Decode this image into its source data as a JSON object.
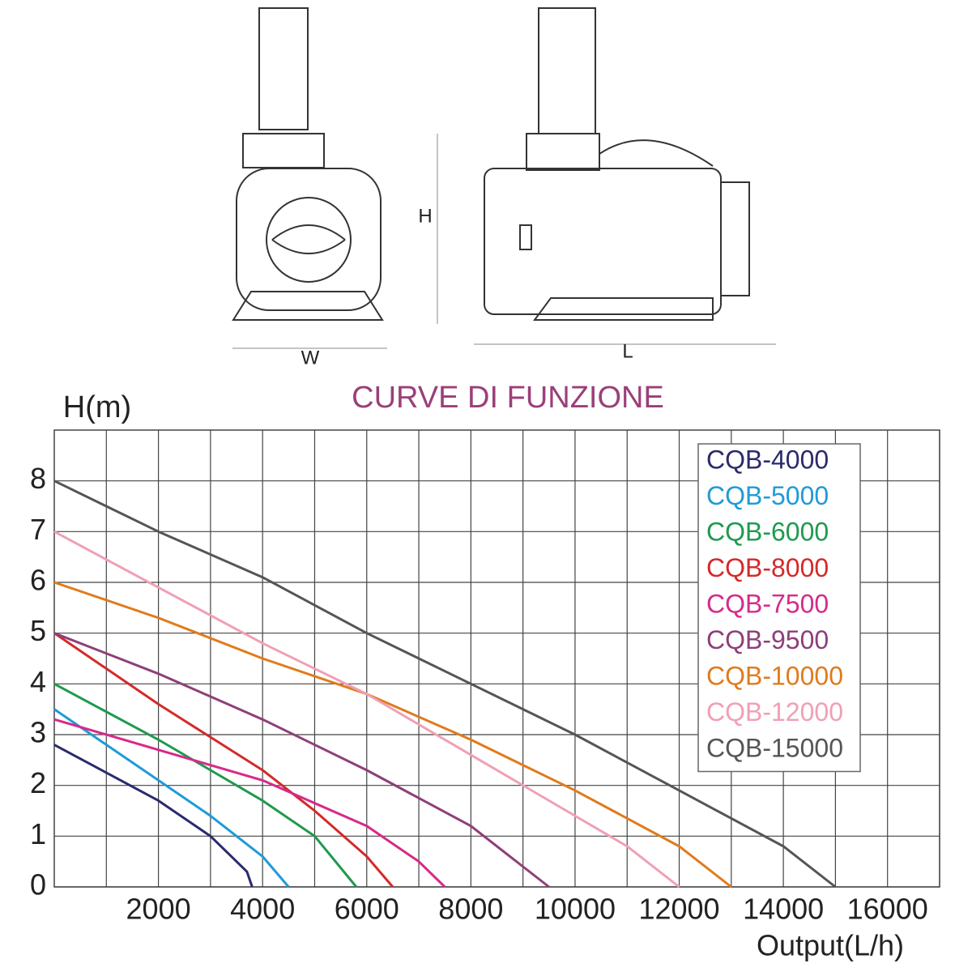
{
  "drawing": {
    "width_label": "W",
    "height_label": "H",
    "length_label": "L"
  },
  "chart_data": {
    "type": "line",
    "title": "CURVE DI FUNZIONE",
    "y_label": "H(m)",
    "x_label": "Output(L/h)",
    "xlim": [
      0,
      17000
    ],
    "ylim": [
      0,
      9
    ],
    "xticks": [
      2000,
      4000,
      6000,
      8000,
      10000,
      12000,
      14000,
      16000
    ],
    "xminor": [
      1000,
      3000,
      5000,
      7000,
      9000,
      11000,
      13000,
      15000,
      17000
    ],
    "yticks": [
      0,
      1,
      2,
      3,
      4,
      5,
      6,
      7,
      8
    ],
    "grid": true,
    "legend": "upper right",
    "series": [
      {
        "name": "CQB-4000",
        "color": "#2a2a6e",
        "x": [
          0,
          2000,
          3000,
          3700,
          3800
        ],
        "values": [
          2.8,
          1.7,
          1.0,
          0.3,
          0
        ]
      },
      {
        "name": "CQB-5000",
        "color": "#1f9bd7",
        "x": [
          0,
          2000,
          3000,
          4000,
          4500
        ],
        "values": [
          3.5,
          2.1,
          1.4,
          0.6,
          0
        ]
      },
      {
        "name": "CQB-6000",
        "color": "#1e9a4e",
        "x": [
          0,
          2000,
          4000,
          5000,
          5800
        ],
        "values": [
          4,
          2.9,
          1.7,
          1.0,
          0
        ]
      },
      {
        "name": "CQB-8000",
        "color": "#d42a2a",
        "x": [
          0,
          2000,
          4000,
          5000,
          6000,
          6500
        ],
        "values": [
          5,
          3.6,
          2.3,
          1.5,
          0.6,
          0
        ]
      },
      {
        "name": "CQB-7500",
        "color": "#d62a8a",
        "x": [
          0,
          2000,
          4000,
          6000,
          7000,
          7500
        ],
        "values": [
          3.3,
          2.7,
          2.1,
          1.2,
          0.5,
          0
        ]
      },
      {
        "name": "CQB-9500",
        "color": "#8e3f78",
        "x": [
          0,
          2000,
          4000,
          6000,
          8000,
          9500
        ],
        "values": [
          5,
          4.2,
          3.3,
          2.3,
          1.2,
          0
        ]
      },
      {
        "name": "CQB-10000",
        "color": "#e07b1c",
        "x": [
          0,
          2000,
          4000,
          6000,
          8000,
          10000,
          12000,
          13000
        ],
        "values": [
          6,
          5.3,
          4.5,
          3.8,
          2.9,
          1.9,
          0.8,
          0
        ]
      },
      {
        "name": "CQB-12000",
        "color": "#f0a0b4",
        "x": [
          0,
          2000,
          4000,
          6000,
          8000,
          10000,
          11000,
          12000
        ],
        "values": [
          7,
          5.9,
          4.8,
          3.8,
          2.6,
          1.4,
          0.8,
          0
        ]
      },
      {
        "name": "CQB-15000",
        "color": "#555555",
        "x": [
          0,
          2000,
          4000,
          6000,
          8000,
          10000,
          12000,
          14000,
          15000
        ],
        "values": [
          8,
          7,
          6.1,
          5.0,
          4,
          3,
          1.9,
          0.8,
          0
        ]
      }
    ]
  }
}
